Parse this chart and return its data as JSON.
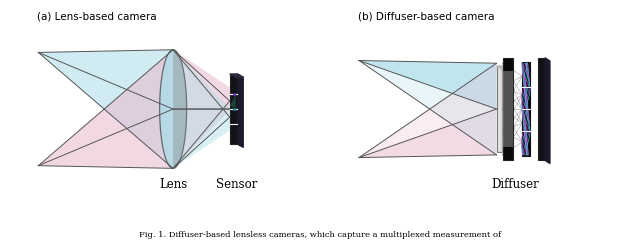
{
  "title_a": "(a) Lens-based camera",
  "title_b": "(b) Diffuser-based camera",
  "label_lens": "Lens",
  "label_sensor": "Sensor",
  "label_diffuser": "Diffuser",
  "caption": "Fig. 1. Diffuser-based lensless cameras, which capture a multiplexed measurement of",
  "bg_color": "#ffffff",
  "cyan_fill": "#aadde8",
  "pink_fill": "#e8b8cc",
  "gray_lens": "#909090",
  "sensor_dark": "#111118",
  "sensor_side": "#1e1e2e",
  "diffuser_gray": "#c8c8c8",
  "ray_color": "#555555",
  "ray_lw": 0.7,
  "purple_sensor": "#6633aa",
  "teal_sensor": "#228888"
}
